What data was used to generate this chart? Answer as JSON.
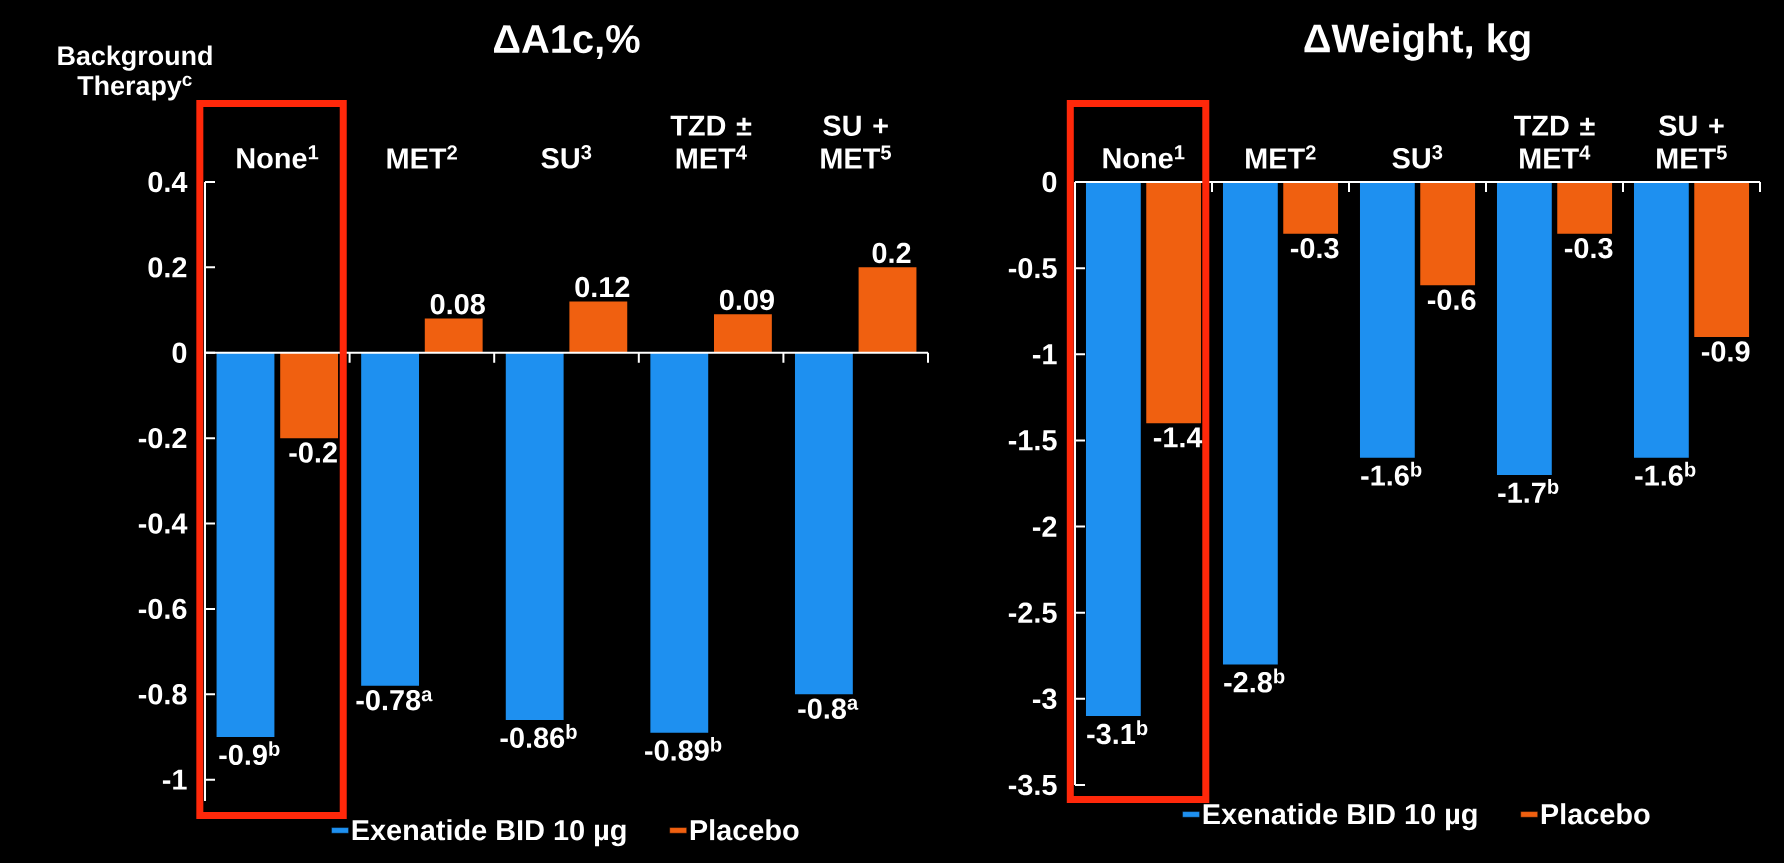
{
  "chart_data": [
    {
      "type": "bar",
      "title": "ΔA1c,%",
      "categories": [
        "None$^{1}$",
        "MET$^{2}$",
        "SU$^{3}$",
        "TZD ± MET$^{4}$",
        "SU + MET$^{5}$"
      ],
      "series": [
        {
          "name": "Exenatide BID 10 µg",
          "color": "#1e90f0",
          "values": [
            -0.9,
            -0.78,
            -0.86,
            -0.89,
            -0.8
          ],
          "value_labels": [
            "-0.9$^{b}$",
            "-0.78$^{a}$",
            "-0.86$^{b}$",
            "-0.89$^{b}$",
            "-0.8$^{a}$"
          ]
        },
        {
          "name": "Placebo",
          "color": "#f06010",
          "values": [
            -0.2,
            0.08,
            0.12,
            0.09,
            0.2
          ],
          "value_labels": [
            "-0.2",
            "0.08",
            "0.12",
            "0.09",
            "0.2"
          ]
        }
      ],
      "ylim": [
        -1.05,
        0.4
      ],
      "yticks": [
        -1,
        -0.8,
        -0.6,
        -0.4,
        -0.2,
        0,
        0.2,
        0.4
      ],
      "legend": "bottom",
      "annotations": [
        "Background Therapy$^{c}$"
      ]
    },
    {
      "type": "bar",
      "title": "ΔWeight, kg",
      "categories": [
        "None$^{1}$",
        "MET$^{2}$",
        "SU$^{3}$",
        "TZD ± MET$^{4}$",
        "SU + MET$^{5}$"
      ],
      "series": [
        {
          "name": "Exenatide BID 10 µg",
          "color": "#1e90f0",
          "values": [
            -3.1,
            -2.8,
            -1.6,
            -1.7,
            -1.6
          ],
          "value_labels": [
            "-3.1$^{b}$",
            "-2.8$^{b}$",
            "-1.6$^{b}$",
            "-1.7$^{b}$",
            "-1.6$^{b}$"
          ]
        },
        {
          "name": "Placebo",
          "color": "#f06010",
          "values": [
            -1.4,
            -0.3,
            -0.6,
            -0.3,
            -0.9
          ],
          "value_labels": [
            "-1.4",
            "-0.3",
            "-0.6",
            "-0.3",
            "-0.9"
          ]
        }
      ],
      "ylim": [
        -3.5,
        0
      ],
      "yticks": [
        -3.5,
        -3,
        -2.5,
        -2,
        -1.5,
        -1,
        -0.5,
        0
      ],
      "legend": "bottom"
    }
  ]
}
